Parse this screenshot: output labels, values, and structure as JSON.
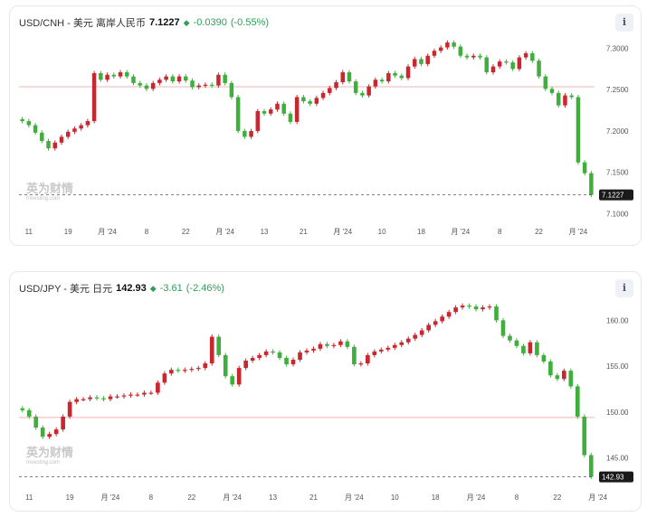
{
  "charts": [
    {
      "pair": "USD/CNH - 美元 离岸人民币",
      "price": "7.1227",
      "change": "-0.0390",
      "change_pct": "(-0.55%)",
      "info_icon": "info-icon",
      "watermark_cn": "英为财情",
      "watermark_en": "Investing.com",
      "last_tag": "7.1227"
    },
    {
      "pair": "USD/JPY - 美元 日元",
      "price": "142.93",
      "change": "-3.61",
      "change_pct": "(-2.46%)",
      "info_icon": "info-icon",
      "watermark_cn": "英为财情",
      "watermark_en": "Investing.com",
      "last_tag": "142.93"
    }
  ],
  "colors": {
    "up": "#c8272e",
    "down": "#3fae3c",
    "accent_green": "#2e9e5a",
    "ref_line": "#f0b4b4",
    "last_line": "#555555"
  },
  "chart_data": [
    {
      "type": "candlestick",
      "title": "USD/CNH - 美元 离岸人民币",
      "y_ticks": [
        "7.3000",
        "7.2500",
        "7.2000",
        "7.1500",
        "7.1000"
      ],
      "y_tick_values": [
        7.3,
        7.25,
        7.2,
        7.15,
        7.1
      ],
      "ylim": [
        7.095,
        7.318
      ],
      "x_ticks": [
        "11",
        "19",
        "月 '24",
        "8",
        "22",
        "月 '24",
        "13",
        "21",
        "月 '24",
        "10",
        "18",
        "月 '24",
        "8",
        "22",
        "月 '24"
      ],
      "x_tick_index": [
        1,
        7,
        13,
        19,
        25,
        31,
        37,
        43,
        49,
        55,
        61,
        67,
        73,
        79,
        85
      ],
      "reference_value": 7.2535,
      "last_value": 7.1227,
      "grid": false,
      "closes": [
        7.212,
        7.207,
        7.198,
        7.188,
        7.179,
        7.186,
        7.193,
        7.199,
        7.203,
        7.207,
        7.212,
        7.27,
        7.262,
        7.268,
        7.266,
        7.271,
        7.266,
        7.258,
        7.255,
        7.251,
        7.258,
        7.262,
        7.266,
        7.26,
        7.266,
        7.261,
        7.253,
        7.255,
        7.256,
        7.255,
        7.268,
        7.258,
        7.241,
        7.2,
        7.193,
        7.2,
        7.224,
        7.221,
        7.226,
        7.233,
        7.221,
        7.211,
        7.241,
        7.236,
        7.233,
        7.24,
        7.246,
        7.252,
        7.259,
        7.271,
        7.26,
        7.246,
        7.243,
        7.254,
        7.262,
        7.26,
        7.27,
        7.267,
        7.264,
        7.278,
        7.287,
        7.281,
        7.291,
        7.297,
        7.301,
        7.307,
        7.302,
        7.291,
        7.289,
        7.291,
        7.289,
        7.271,
        7.278,
        7.284,
        7.283,
        7.275,
        7.289,
        7.294,
        7.285,
        7.266,
        7.251,
        7.246,
        7.231,
        7.243,
        7.241,
        7.162,
        7.149,
        7.1227
      ]
    },
    {
      "type": "candlestick",
      "title": "USD/JPY - 美元 日元",
      "y_ticks": [
        "160.00",
        "155.00",
        "150.00",
        "145.00"
      ],
      "y_tick_values": [
        160,
        155,
        150,
        145
      ],
      "ylim": [
        142.2,
        162.3
      ],
      "x_ticks": [
        "11",
        "19",
        "月 '24",
        "8",
        "22",
        "月 '24",
        "13",
        "21",
        "月 '24",
        "10",
        "18",
        "月 '24",
        "8",
        "22",
        "月 '24"
      ],
      "x_tick_index": [
        1,
        7,
        13,
        19,
        25,
        31,
        37,
        43,
        49,
        55,
        61,
        67,
        73,
        79,
        85
      ],
      "reference_value": 149.4,
      "last_value": 142.93,
      "grid": false,
      "closes": [
        150.2,
        149.5,
        148.3,
        147.3,
        147.6,
        148.1,
        149.5,
        151.1,
        151.4,
        151.4,
        151.6,
        151.5,
        151.4,
        151.7,
        151.7,
        151.8,
        151.9,
        151.9,
        152.1,
        152.1,
        153.2,
        154.2,
        154.6,
        154.5,
        154.6,
        154.7,
        154.8,
        155.3,
        158.2,
        156.2,
        153.9,
        153.0,
        154.8,
        155.6,
        155.9,
        156.2,
        156.6,
        156.5,
        155.9,
        155.2,
        155.7,
        156.5,
        156.7,
        156.9,
        157.4,
        157.2,
        157.3,
        157.7,
        157.1,
        155.2,
        155.3,
        156.2,
        156.6,
        156.8,
        157.0,
        157.3,
        157.6,
        158.0,
        158.4,
        158.9,
        159.5,
        159.9,
        160.4,
        160.9,
        161.4,
        161.6,
        161.5,
        161.2,
        161.4,
        161.5,
        160.0,
        158.3,
        157.8,
        157.2,
        156.4,
        157.6,
        156.2,
        155.5,
        154.0,
        153.6,
        154.5,
        152.8,
        149.5,
        145.3,
        142.93
      ]
    }
  ]
}
